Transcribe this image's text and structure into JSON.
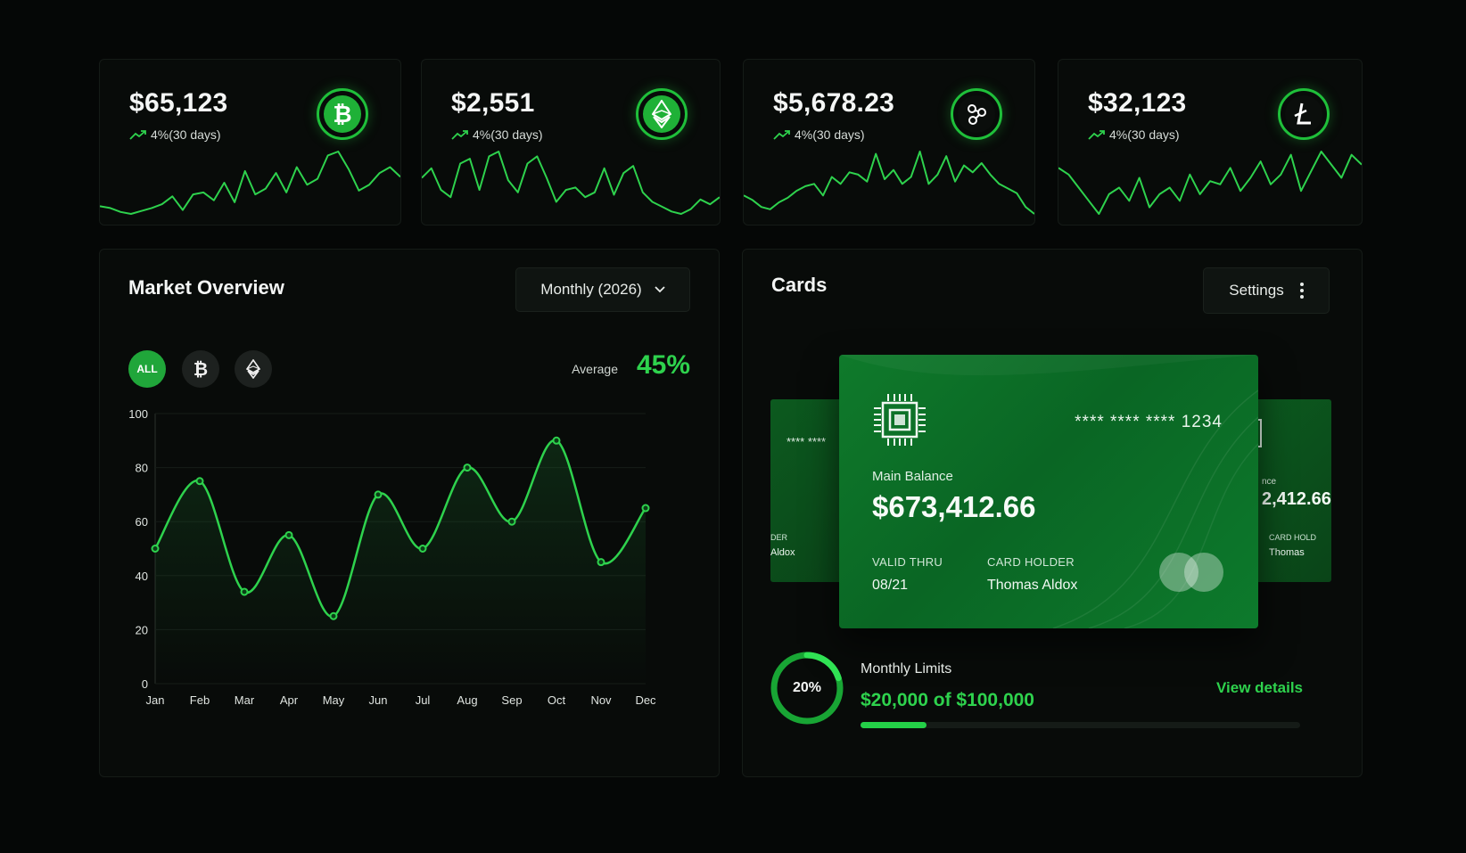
{
  "tickers": [
    {
      "name": "bitcoin",
      "price": "$65,123",
      "change": "4%(30 days)",
      "icon": "bitcoin-icon",
      "spark": [
        12,
        10,
        6,
        4,
        7,
        10,
        14,
        22,
        8,
        24,
        26,
        18,
        36,
        16,
        48,
        24,
        30,
        46,
        26,
        52,
        34,
        40,
        64,
        68,
        50,
        28,
        34,
        46,
        52,
        42
      ]
    },
    {
      "name": "ethereum",
      "price": "$2,551",
      "change": "4%(30 days)",
      "icon": "ethereum-icon",
      "spark": [
        40,
        48,
        30,
        24,
        52,
        56,
        30,
        58,
        62,
        38,
        28,
        52,
        58,
        40,
        20,
        30,
        32,
        24,
        28,
        48,
        26,
        44,
        50,
        28,
        20,
        16,
        12,
        10,
        14,
        22,
        18,
        24
      ]
    },
    {
      "name": "ripple",
      "price": "$5,678.23",
      "change": "4%(30 days)",
      "icon": "ripple-icon",
      "spark": [
        20,
        16,
        10,
        8,
        14,
        18,
        24,
        28,
        30,
        20,
        36,
        30,
        40,
        38,
        32,
        56,
        34,
        42,
        30,
        36,
        58,
        30,
        38,
        54,
        32,
        46,
        40,
        48,
        38,
        30,
        26,
        22,
        10,
        4
      ]
    },
    {
      "name": "litecoin",
      "price": "$32,123",
      "change": "4%(30 days)",
      "icon": "litecoin-icon",
      "spark": [
        50,
        46,
        38,
        30,
        22,
        34,
        38,
        30,
        44,
        26,
        34,
        38,
        30,
        46,
        34,
        42,
        40,
        50,
        36,
        44,
        54,
        40,
        46,
        58,
        36,
        48,
        60,
        52,
        44,
        58,
        52
      ]
    }
  ],
  "market": {
    "title": "Market Overview",
    "period": "Monthly (2026)",
    "filters": {
      "all": "ALL"
    },
    "average_label": "Average",
    "average_value": "45%"
  },
  "chart_data": {
    "type": "line",
    "categories": [
      "Jan",
      "Feb",
      "Mar",
      "Apr",
      "May",
      "Jun",
      "Jul",
      "Aug",
      "Sep",
      "Oct",
      "Nov",
      "Dec"
    ],
    "values": [
      50,
      75,
      34,
      55,
      25,
      70,
      50,
      80,
      60,
      90,
      45,
      65
    ],
    "yticks": [
      0,
      20,
      40,
      60,
      80,
      100
    ],
    "ylim": [
      0,
      100
    ],
    "color": "#2ed24d"
  },
  "cards": {
    "title": "Cards",
    "settings_label": "Settings",
    "main": {
      "masked_number": "**** **** **** 1234",
      "balance_label": "Main Balance",
      "balance": "$673,412.66",
      "valid_label": "VALID THRU",
      "valid": "08/21",
      "holder_label": "CARD HOLDER",
      "holder": "Thomas Aldox"
    },
    "back_left": {
      "masked": "**** **** ",
      "holder_label": "DER",
      "holder": "Aldox"
    },
    "back_right": {
      "balance_label": "nce",
      "balance": "2,412.66",
      "holder_label": "CARD HOLD",
      "holder": "Thomas "
    },
    "limits": {
      "label": "Monthly Limits",
      "percent": 0.2,
      "percent_text": "20%",
      "value": "$20,000 of $100,000",
      "link": "View details"
    }
  },
  "colors": {
    "accent": "#2ed24d",
    "panel": "#080b09",
    "card": "#0d7a2c"
  }
}
